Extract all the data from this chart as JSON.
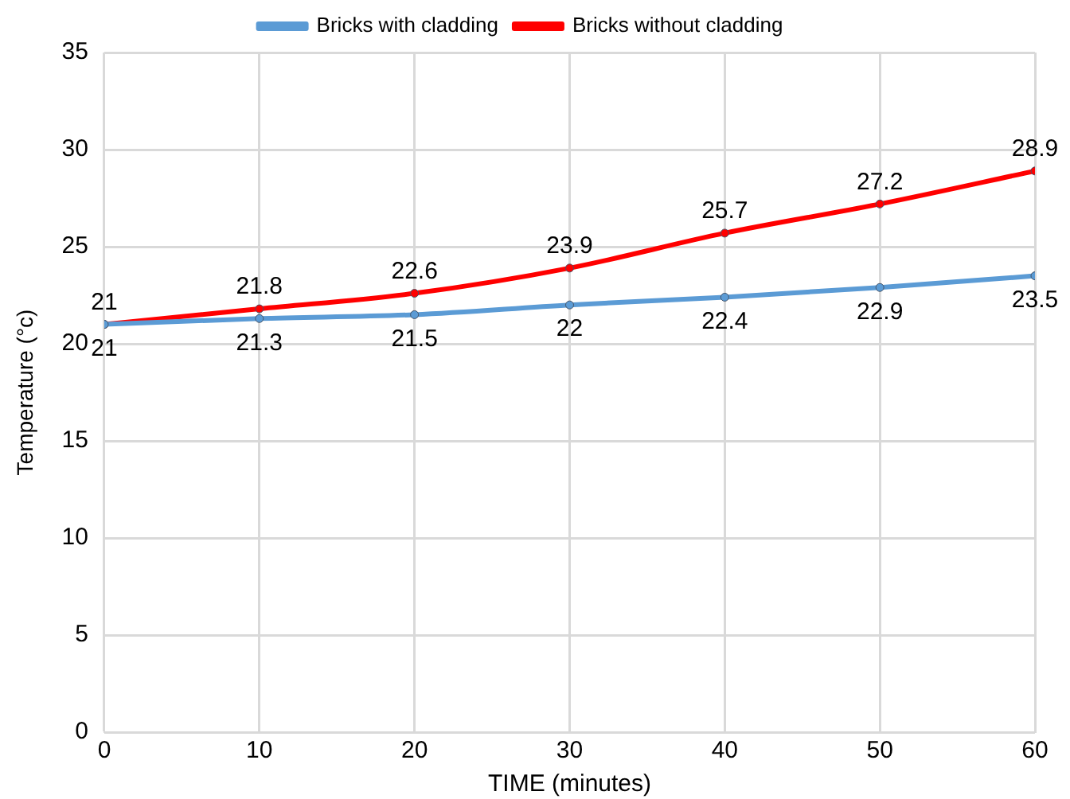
{
  "chart_data": {
    "type": "line",
    "xlabel": "TIME (minutes)",
    "ylabel": "Temperature (°c)",
    "x": [
      0,
      10,
      20,
      30,
      40,
      50,
      60
    ],
    "series": [
      {
        "name": "Bricks with cladding",
        "color": "#5b9bd5",
        "values": [
          21,
          21.3,
          21.5,
          22,
          22.4,
          22.9,
          23.5
        ]
      },
      {
        "name": "Bricks without cladding",
        "color": "#ff0000",
        "values": [
          21,
          21.8,
          22.6,
          23.9,
          25.7,
          27.2,
          28.9
        ]
      }
    ],
    "xlim": [
      0,
      60
    ],
    "xticks": [
      0,
      10,
      20,
      30,
      40,
      50,
      60
    ],
    "ylim": [
      0,
      35
    ],
    "yticks": [
      0,
      5,
      10,
      15,
      20,
      25,
      30,
      35
    ],
    "grid": true,
    "legend": "top",
    "marker": "circle",
    "line_style": "solid",
    "data_labels": true
  }
}
